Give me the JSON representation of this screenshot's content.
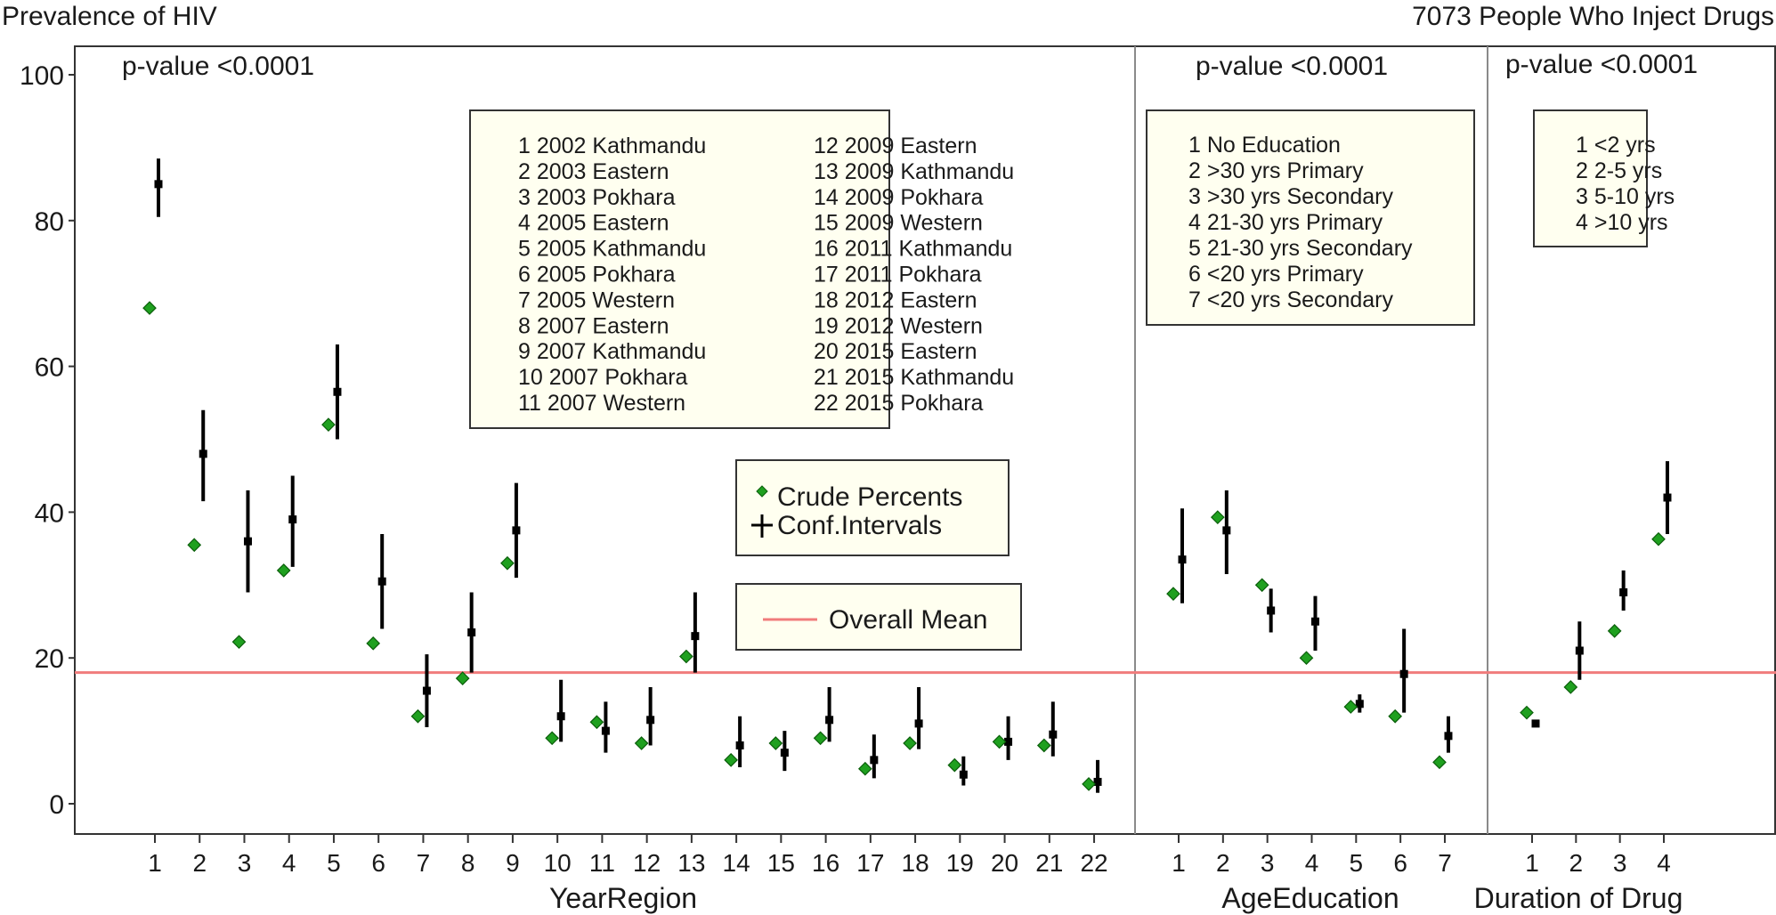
{
  "header": {
    "left_title": "Prevalence of HIV",
    "right_title": "7073 People Who Inject Drugs"
  },
  "colors": {
    "crude": "#1fa01f",
    "ci": "#000000",
    "mean_line": "#f07c7c",
    "legend_bg": "#fffff0"
  },
  "chart_data": {
    "type": "scatter",
    "ylabel": "",
    "ylim": [
      0,
      100
    ],
    "yticks": [
      0,
      20,
      40,
      60,
      80,
      100
    ],
    "overall_mean": 18,
    "legend": {
      "crude": "Crude Percents",
      "ci": "Conf.Intervals",
      "mean": "Overall Mean"
    },
    "panels": [
      {
        "xlabel": "YearRegion",
        "pvalue": "p-value <0.0001",
        "categories": [
          "1",
          "2",
          "3",
          "4",
          "5",
          "6",
          "7",
          "8",
          "9",
          "10",
          "11",
          "12",
          "13",
          "14",
          "15",
          "16",
          "17",
          "18",
          "19",
          "20",
          "21",
          "22"
        ],
        "crude": [
          68,
          35.5,
          22.2,
          32,
          52,
          22,
          12,
          17.2,
          33,
          9,
          11.2,
          8.3,
          20.2,
          6,
          8.3,
          9,
          4.8,
          8.3,
          5.3,
          8.5,
          8,
          2.7
        ],
        "adjusted": [
          85,
          48,
          36,
          39,
          56.5,
          30.5,
          15.5,
          23.5,
          37.5,
          12,
          10,
          11.5,
          23,
          8,
          7,
          11.5,
          6,
          11,
          4,
          8.5,
          9.5,
          3
        ],
        "ci_low": [
          80.5,
          41.5,
          29,
          32.5,
          50,
          24,
          10.5,
          18,
          31,
          8.5,
          7,
          8,
          18,
          5,
          4.5,
          8.5,
          3.5,
          7.5,
          2.5,
          6,
          6.5,
          1.5
        ],
        "ci_high": [
          88.5,
          54,
          43,
          45,
          63,
          37,
          20.5,
          29,
          44,
          17,
          14,
          16,
          29,
          12,
          10,
          16,
          9.5,
          16,
          6.5,
          12,
          14,
          6
        ],
        "key": [
          "1 2002 Kathmandu",
          "2 2003 Eastern",
          "3 2003 Pokhara",
          "4 2005 Eastern",
          "5 2005 Kathmandu",
          "6 2005 Pokhara",
          "7 2005 Western",
          "8 2007 Eastern",
          "9 2007 Kathmandu",
          "10 2007 Pokhara",
          "11 2007 Western",
          "12 2009 Eastern",
          "13 2009 Kathmandu",
          "14 2009 Pokhara",
          "15 2009 Western",
          "16 2011 Kathmandu",
          "17 2011 Pokhara",
          "18 2012 Eastern",
          "19 2012 Western",
          "20 2015 Eastern",
          "21 2015 Kathmandu",
          "22 2015 Pokhara"
        ]
      },
      {
        "xlabel": "AgeEducation",
        "pvalue": "p-value  <0.0001",
        "categories": [
          "1",
          "2",
          "3",
          "4",
          "5",
          "6",
          "7"
        ],
        "crude": [
          28.8,
          39.3,
          30,
          20,
          13.3,
          12,
          5.7
        ],
        "adjusted": [
          33.5,
          37.5,
          26.5,
          25,
          13.7,
          17.8,
          9.3
        ],
        "ci_low": [
          27.5,
          31.5,
          23.5,
          21,
          12.5,
          12.5,
          7
        ],
        "ci_high": [
          40.5,
          43,
          29.5,
          28.5,
          15,
          24,
          12
        ],
        "key": [
          "1 No Education",
          "2 >30 yrs Primary",
          "3 >30 yrs Secondary",
          "4 21-30 yrs Primary",
          "5 21-30 yrs Secondary",
          "6 <20 yrs Primary",
          "7 <20 yrs Secondary"
        ]
      },
      {
        "xlabel": "Duration of Drug",
        "pvalue": "p-value  <0.0001",
        "categories": [
          "1",
          "2",
          "3",
          "4"
        ],
        "crude": [
          12.5,
          16,
          23.7,
          36.3
        ],
        "adjusted": [
          11,
          21,
          29,
          42
        ],
        "ci_low": [
          10.5,
          17,
          26.5,
          37
        ],
        "ci_high": [
          11.5,
          25,
          32,
          47
        ],
        "key": [
          "1 <2 yrs",
          "2 2-5 yrs",
          "3 5-10 yrs",
          "4 >10 yrs"
        ]
      }
    ]
  }
}
